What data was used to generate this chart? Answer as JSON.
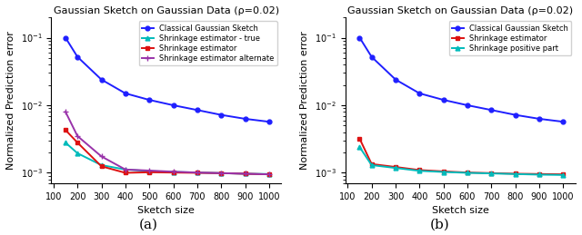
{
  "title": "Gaussian Sketch on Gaussian Data (ρ=0.02)",
  "xlabel": "Sketch size",
  "ylabel": "Normalized Prediction error",
  "x": [
    150,
    200,
    300,
    400,
    500,
    600,
    700,
    800,
    900,
    1000
  ],
  "plot_a": {
    "classical_x": [
      150,
      200,
      300,
      400,
      500,
      600,
      700,
      800,
      900,
      1000
    ],
    "classical_y": [
      0.1,
      0.052,
      0.024,
      0.015,
      0.012,
      0.01,
      0.0085,
      0.0072,
      0.0063,
      0.0057
    ],
    "shrinkage_true_x": [
      150,
      200,
      300,
      400,
      500,
      600,
      700,
      800,
      900,
      1000
    ],
    "shrinkage_true_y": [
      0.0028,
      0.00195,
      0.0013,
      0.00112,
      0.00106,
      0.00103,
      0.00101,
      0.00099,
      0.00097,
      0.00096
    ],
    "shrinkage_x": [
      150,
      200,
      300,
      400,
      500,
      600,
      700,
      800,
      900,
      1000
    ],
    "shrinkage_y": [
      0.0043,
      0.0028,
      0.00125,
      0.001,
      0.00102,
      0.00101,
      0.001,
      0.00099,
      0.00097,
      0.00095
    ],
    "alternate_x": [
      150,
      200,
      300,
      400,
      500,
      600,
      700,
      800,
      900,
      1000
    ],
    "alternate_y": [
      0.008,
      0.0035,
      0.00175,
      0.00112,
      0.00108,
      0.00104,
      0.00101,
      0.00099,
      0.00097,
      0.00095
    ],
    "legend": [
      "Classical Gaussian Sketch",
      "Shrinkage estimator - true",
      "Shrinkage estimator",
      "Shrinkage estimator alternate"
    ],
    "label": "(a)"
  },
  "plot_b": {
    "classical_x": [
      150,
      200,
      300,
      400,
      500,
      600,
      700,
      800,
      900,
      1000
    ],
    "classical_y": [
      0.1,
      0.052,
      0.024,
      0.015,
      0.012,
      0.01,
      0.0085,
      0.0072,
      0.0063,
      0.0057
    ],
    "shrinkage_x": [
      150,
      200,
      300,
      400,
      500,
      600,
      700,
      800,
      900,
      1000
    ],
    "shrinkage_y": [
      0.0032,
      0.00135,
      0.00122,
      0.0011,
      0.00105,
      0.00101,
      0.00099,
      0.00097,
      0.00096,
      0.00095
    ],
    "positive_part_x": [
      150,
      200,
      300,
      400,
      500,
      600,
      700,
      800,
      900,
      1000
    ],
    "positive_part_y": [
      0.0024,
      0.0013,
      0.00118,
      0.00107,
      0.00103,
      0.001,
      0.00098,
      0.00096,
      0.00094,
      0.00093
    ],
    "legend": [
      "Classical Gaussian Sketch",
      "Shrinkage estimator",
      "Shrinkage positive part"
    ],
    "label": "(b)"
  },
  "colors": {
    "classical": "#1f1fff",
    "shrinkage_true": "#00bbbb",
    "shrinkage": "#dd1111",
    "alternate": "#9933aa",
    "positive_part": "#00bbbb"
  },
  "ylim": [
    0.0007,
    0.2
  ],
  "xlim": [
    90,
    1050
  ],
  "xticks": [
    100,
    200,
    300,
    400,
    500,
    600,
    700,
    800,
    900,
    1000
  ],
  "figsize": [
    6.4,
    2.59
  ],
  "dpi": 100
}
